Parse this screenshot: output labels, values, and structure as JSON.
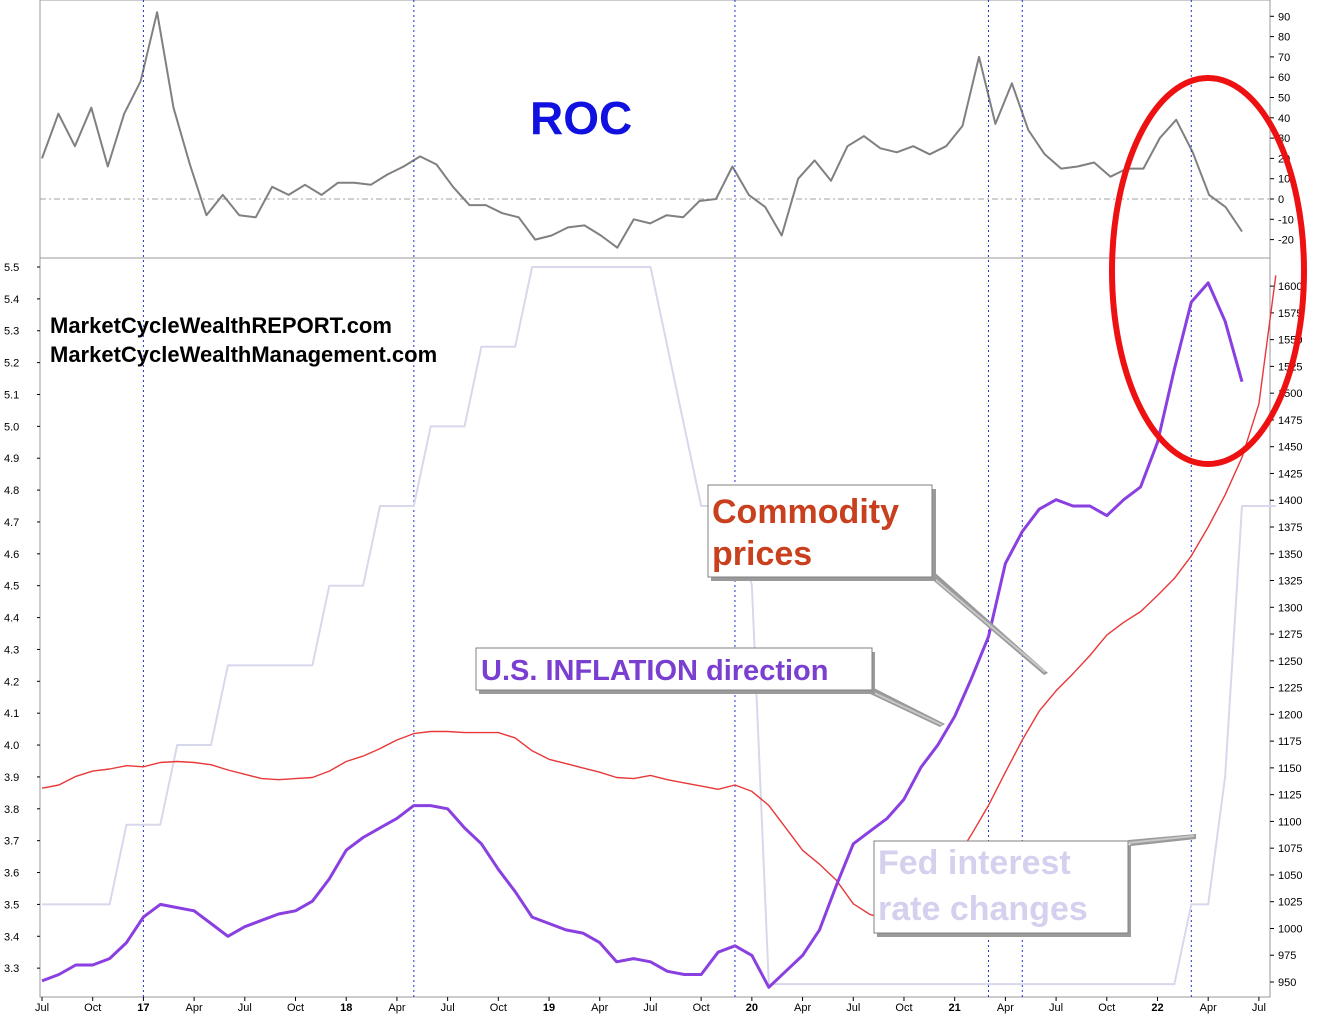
{
  "colors": {
    "roc_line": "#808080",
    "commodity": "#e8383a",
    "inflation": "#8a3fe0",
    "fed": "#d8d8ec",
    "vline": "#2030d0",
    "highlight": "#ee1111",
    "roc_title": "#1010e0",
    "commodity_label": "#c8401e",
    "inflation_label": "#7a3ed0",
    "fed_label": "#d4d0ee"
  },
  "labels": {
    "roc_title": "ROC",
    "site1": "MarketCycleWealthREPORT.com",
    "site2": "MarketCycleWealthManagement.com",
    "commodity_line1": "Commodity",
    "commodity_line2": "prices",
    "inflation": "U.S. INFLATION direction",
    "fed_line1": "Fed interest",
    "fed_line2": "rate changes"
  },
  "chart_data": [
    {
      "type": "line",
      "panel": "top",
      "title": "ROC",
      "ylim": [
        -30,
        95
      ],
      "y_ticks": [
        "90",
        "80",
        "70",
        "60",
        "50",
        "40",
        "30",
        "20",
        "10",
        "0",
        "-10",
        "-20"
      ],
      "zero_line": true,
      "series": [
        {
          "values": [
            20,
            42,
            26,
            45,
            16,
            42,
            58,
            92,
            45,
            17,
            -8,
            2,
            -8,
            -9,
            6,
            2,
            7,
            2,
            8,
            8,
            7,
            12,
            16,
            21,
            17,
            6,
            -3,
            -3,
            -7,
            -9,
            -20,
            -18,
            -14,
            -13,
            -18,
            -24,
            -10,
            -12,
            -8,
            -9,
            -1,
            0,
            16,
            2,
            -4,
            -18,
            10,
            19,
            9,
            26,
            31,
            25,
            23,
            26,
            22,
            26,
            36,
            70,
            37,
            57,
            34,
            22,
            15,
            16,
            18,
            11,
            15,
            15,
            30,
            39,
            23,
            2,
            -4,
            -16
          ]
        }
      ]
    },
    {
      "type": "line",
      "panel": "bottom",
      "x_ticks": [
        {
          "label": "Jul",
          "i": 0
        },
        {
          "label": "Oct",
          "i": 3
        },
        {
          "label": "17",
          "i": 6,
          "bold": true
        },
        {
          "label": "Apr",
          "i": 9
        },
        {
          "label": "Jul",
          "i": 12
        },
        {
          "label": "Oct",
          "i": 15
        },
        {
          "label": "18",
          "i": 18,
          "bold": true
        },
        {
          "label": "Apr",
          "i": 21
        },
        {
          "label": "Jul",
          "i": 24
        },
        {
          "label": "Oct",
          "i": 27
        },
        {
          "label": "19",
          "i": 30,
          "bold": true
        },
        {
          "label": "Apr",
          "i": 33
        },
        {
          "label": "Jul",
          "i": 36
        },
        {
          "label": "Oct",
          "i": 39
        },
        {
          "label": "20",
          "i": 42,
          "bold": true
        },
        {
          "label": "Apr",
          "i": 45
        },
        {
          "label": "Jul",
          "i": 48
        },
        {
          "label": "Oct",
          "i": 51
        },
        {
          "label": "21",
          "i": 54,
          "bold": true
        },
        {
          "label": "Apr",
          "i": 57
        },
        {
          "label": "Jul",
          "i": 60
        },
        {
          "label": "Oct",
          "i": 63
        },
        {
          "label": "22",
          "i": 66,
          "bold": true
        },
        {
          "label": "Apr",
          "i": 69
        },
        {
          "label": "Jul",
          "i": 72
        }
      ],
      "vertical_lines_at_i": [
        6,
        22,
        41,
        56,
        58,
        68
      ],
      "left_axis": {
        "ylim": [
          3.22,
          5.5
        ],
        "ticks": [
          "5.5",
          "5.4",
          "5.3",
          "5.2",
          "5.1",
          "5.0",
          "4.9",
          "4.8",
          "4.7",
          "4.6",
          "4.5",
          "4.4",
          "4.3",
          "4.2",
          "4.1",
          "4.0",
          "3.9",
          "3.8",
          "3.7",
          "3.6",
          "3.5",
          "3.4",
          "3.3"
        ]
      },
      "right_axis": {
        "ylim": [
          945,
          1612
        ],
        "ticks": [
          "1600",
          "1575",
          "1550",
          "1525",
          "1500",
          "1475",
          "1450",
          "1425",
          "1400",
          "1375",
          "1350",
          "1325",
          "1300",
          "1275",
          "1250",
          "1225",
          "1200",
          "1175",
          "1150",
          "1125",
          "1100",
          "1075",
          "1050",
          "1025",
          "1000",
          "975",
          "950"
        ]
      },
      "series": [
        {
          "name": "Commodity prices",
          "axis": "right",
          "values": [
            1131,
            1134,
            1142,
            1147,
            1149,
            1152,
            1151,
            1155,
            1156,
            1155,
            1153,
            1148,
            1144,
            1140,
            1139,
            1140,
            1141,
            1147,
            1156,
            1161,
            1168,
            1176,
            1182,
            1184,
            1184,
            1183,
            1183,
            1183,
            1178,
            1166,
            1158,
            1154,
            1150,
            1146,
            1141,
            1140,
            1143,
            1139,
            1136,
            1133,
            1130,
            1134,
            1128,
            1115,
            1094,
            1073,
            1060,
            1045,
            1023,
            1013,
            1009,
            1015,
            1029,
            1043,
            1063,
            1088,
            1115,
            1146,
            1176,
            1203,
            1222,
            1238,
            1255,
            1274,
            1286,
            1296,
            1311,
            1327,
            1348,
            1375,
            1405,
            1440,
            1490,
            1610
          ]
        },
        {
          "name": "U.S. INFLATION direction",
          "axis": "left",
          "values": [
            3.26,
            3.28,
            3.31,
            3.31,
            3.33,
            3.38,
            3.46,
            3.5,
            3.49,
            3.48,
            3.44,
            3.4,
            3.43,
            3.45,
            3.47,
            3.48,
            3.51,
            3.58,
            3.67,
            3.71,
            3.74,
            3.77,
            3.81,
            3.81,
            3.8,
            3.74,
            3.69,
            3.61,
            3.54,
            3.46,
            3.44,
            3.42,
            3.41,
            3.38,
            3.32,
            3.33,
            3.32,
            3.29,
            3.28,
            3.28,
            3.35,
            3.37,
            3.34,
            3.24,
            3.29,
            3.34,
            3.42,
            3.56,
            3.69,
            3.73,
            3.77,
            3.83,
            3.93,
            4.0,
            4.09,
            4.21,
            4.34,
            4.57,
            4.67,
            4.74,
            4.77,
            4.75,
            4.75,
            4.72,
            4.77,
            4.81,
            4.95,
            5.18,
            5.39,
            5.45,
            5.33,
            5.14
          ]
        },
        {
          "name": "Fed interest rate changes",
          "axis": "left",
          "values": [
            3.5,
            3.5,
            3.5,
            3.5,
            3.5,
            3.75,
            3.75,
            3.75,
            4.0,
            4.0,
            4.0,
            4.25,
            4.25,
            4.25,
            4.25,
            4.25,
            4.25,
            4.5,
            4.5,
            4.5,
            4.75,
            4.75,
            4.75,
            5.0,
            5.0,
            5.0,
            5.25,
            5.25,
            5.25,
            5.5,
            5.5,
            5.5,
            5.5,
            5.5,
            5.5,
            5.5,
            5.5,
            5.25,
            5.0,
            4.75,
            4.75,
            4.75,
            4.5,
            3.25,
            3.25,
            3.25,
            3.25,
            3.25,
            3.25,
            3.25,
            3.25,
            3.25,
            3.25,
            3.25,
            3.25,
            3.25,
            3.25,
            3.25,
            3.25,
            3.25,
            3.25,
            3.25,
            3.25,
            3.25,
            3.25,
            3.25,
            3.25,
            3.25,
            3.5,
            3.5,
            3.9,
            4.75,
            4.75,
            4.75
          ]
        }
      ]
    }
  ]
}
